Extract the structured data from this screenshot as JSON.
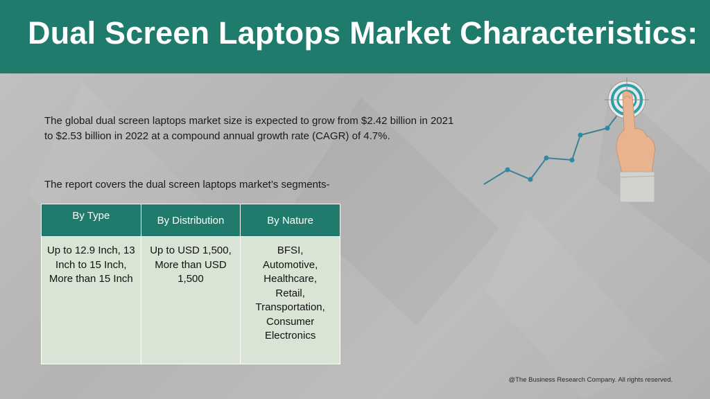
{
  "header": {
    "title": "Dual Screen Laptops Market Characteristics:"
  },
  "intro": {
    "text": "The global dual screen laptops market size is expected to grow from $2.42 billion in 2021 to $2.53 billion in 2022 at a compound annual growth rate (CAGR) of 4.7%."
  },
  "segments": {
    "intro": "The report covers the dual screen laptops market’s segments-",
    "columns": [
      {
        "header": "By Type",
        "content": "Up to 12.9 Inch, 13\nInch to 15 Inch,\nMore than 15 Inch"
      },
      {
        "header": "By Distribution",
        "content": "Up to USD 1,500,\nMore than USD\n1,500"
      },
      {
        "header": "By Nature",
        "content": "BFSI,\nAutomotive,\nHealthcare,\nRetail,\nTransportation,\nConsumer\nElectronics"
      }
    ]
  },
  "graphic": {
    "icon": "growth-chart-with-target-and-hand-icon",
    "line_color": "#3d7f93",
    "target_color": "#2aa0a8"
  },
  "footer": {
    "copyright": "@The Business Research Company. All rights reserved."
  }
}
